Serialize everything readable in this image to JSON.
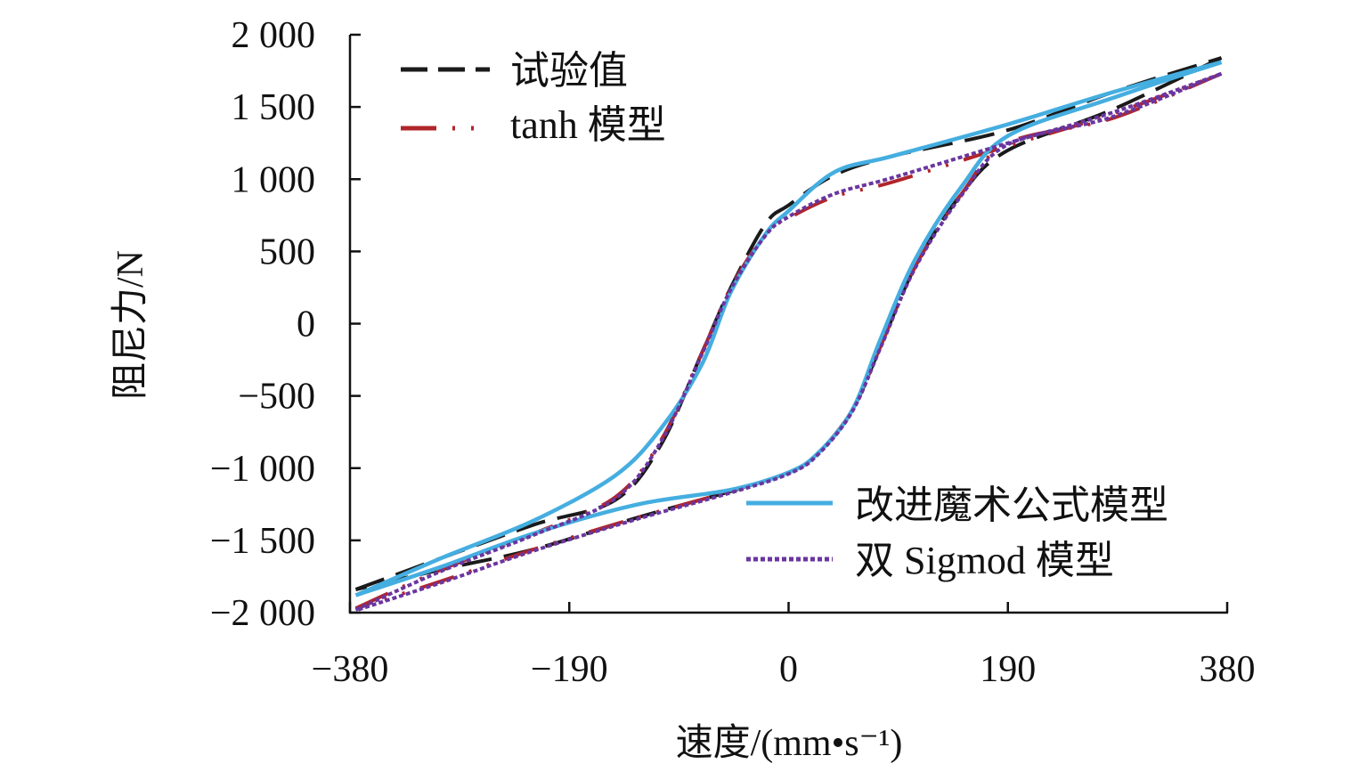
{
  "chart_data": {
    "type": "line",
    "title": "",
    "xlabel": "速度/(mm•s⁻¹)",
    "ylabel": "阻尼力/N",
    "xlim": [
      -380,
      380
    ],
    "ylim": [
      -2000,
      2000
    ],
    "xticks": [
      -380,
      -190,
      0,
      190,
      380
    ],
    "xtick_labels": [
      "−380",
      "−190",
      "0",
      "190",
      "380"
    ],
    "yticks": [
      2000,
      1500,
      1000,
      500,
      0,
      -500,
      -1000,
      -1500,
      -2000
    ],
    "ytick_labels": [
      "2 000",
      "1 500",
      "1 000",
      "500",
      "0",
      "−500",
      "−1 000",
      "−1 500",
      "−2 000"
    ],
    "grid": false,
    "legend": [
      {
        "label": "试验值",
        "placement": "top-left"
      },
      {
        "label": "tanh 模型",
        "placement": "top-left"
      },
      {
        "label": "改进魔术公式模型",
        "placement": "bottom-right"
      },
      {
        "label": "双 Sigmod 模型",
        "placement": "bottom-right"
      }
    ],
    "series": [
      {
        "name": "试验值",
        "color": "#1a1a1a",
        "style": "longdash",
        "upper_x": [
          -375,
          -300,
          -220,
          -150,
          -110,
          -75,
          -50,
          -20,
          0,
          40,
          90,
          190,
          280,
          375
        ],
        "upper_y": [
          -1840,
          -1620,
          -1390,
          -1220,
          -830,
          -200,
          250,
          690,
          820,
          1030,
          1160,
          1340,
          1600,
          1840
        ],
        "lower_x": [
          375,
          280,
          190,
          150,
          110,
          80,
          55,
          25,
          0,
          -50,
          -130,
          -220,
          -300,
          -375
        ],
        "lower_y": [
          1840,
          1480,
          1200,
          900,
          400,
          -150,
          -600,
          -900,
          -1030,
          -1160,
          -1340,
          -1560,
          -1700,
          -1840
        ]
      },
      {
        "name": "tanh 模型",
        "color": "#b0252a",
        "style": "dashdot",
        "upper_x": [
          -375,
          -300,
          -220,
          -150,
          -110,
          -75,
          -50,
          -20,
          0,
          40,
          90,
          190,
          280,
          375
        ],
        "upper_y": [
          -1970,
          -1700,
          -1450,
          -1200,
          -800,
          -200,
          250,
          620,
          730,
          880,
          980,
          1230,
          1450,
          1730
        ],
        "lower_x": [
          375,
          280,
          190,
          150,
          110,
          80,
          55,
          25,
          0,
          -50,
          -130,
          -220,
          -300,
          -375
        ],
        "lower_y": [
          1730,
          1420,
          1250,
          900,
          400,
          -150,
          -600,
          -900,
          -1030,
          -1160,
          -1340,
          -1560,
          -1780,
          -1970
        ]
      },
      {
        "name": "改进魔术公式模型",
        "color": "#45aee0",
        "style": "solid",
        "upper_x": [
          -375,
          -300,
          -220,
          -150,
          -110,
          -75,
          -50,
          -20,
          0,
          40,
          90,
          190,
          280,
          375
        ],
        "upper_y": [
          -1880,
          -1620,
          -1360,
          -1050,
          -720,
          -280,
          220,
          620,
          780,
          1050,
          1160,
          1380,
          1600,
          1810
        ],
        "lower_x": [
          375,
          280,
          190,
          150,
          110,
          80,
          55,
          25,
          0,
          -50,
          -130,
          -220,
          -300,
          -375
        ],
        "lower_y": [
          1810,
          1560,
          1300,
          950,
          450,
          -100,
          -600,
          -900,
          -1030,
          -1150,
          -1250,
          -1450,
          -1680,
          -1880
        ]
      },
      {
        "name": "双 Sigmod 模型",
        "color": "#6a35a0",
        "style": "dotted",
        "upper_x": [
          -375,
          -300,
          -220,
          -150,
          -110,
          -75,
          -50,
          -20,
          0,
          40,
          90,
          190,
          280,
          375
        ],
        "upper_y": [
          -1980,
          -1710,
          -1460,
          -1210,
          -810,
          -210,
          240,
          610,
          740,
          900,
          1010,
          1250,
          1460,
          1730
        ],
        "lower_x": [
          375,
          280,
          190,
          150,
          110,
          80,
          55,
          25,
          0,
          -50,
          -130,
          -220,
          -300,
          -375
        ],
        "lower_y": [
          1730,
          1430,
          1240,
          890,
          390,
          -160,
          -610,
          -910,
          -1040,
          -1170,
          -1350,
          -1570,
          -1790,
          -1985
        ]
      }
    ]
  }
}
